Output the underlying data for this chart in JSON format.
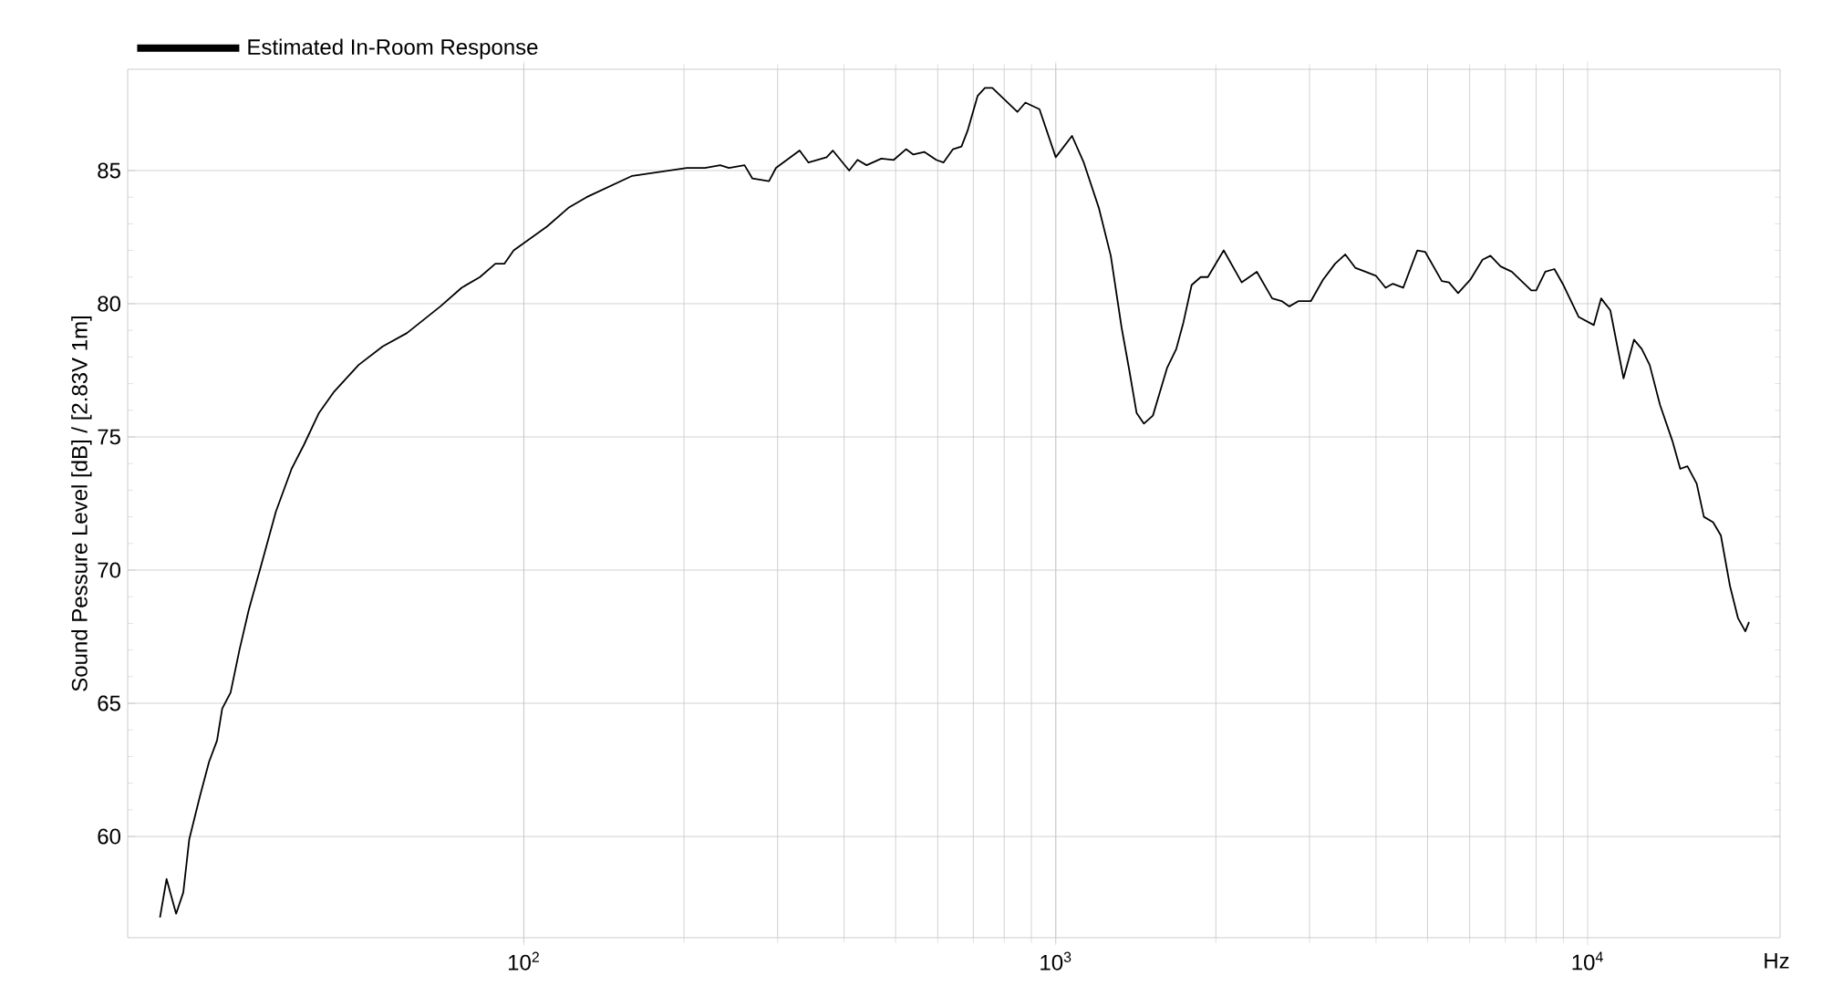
{
  "chart_data": {
    "type": "line",
    "xlabel": "Hz",
    "ylabel": "Sound Pessure Level [dB]  / [2.83V 1m]",
    "log": "x",
    "grid": true,
    "legend": "top left",
    "marker": "none",
    "line_style": "solid",
    "xlim": [
      18,
      23000
    ],
    "ylim": [
      56.2,
      88.8
    ],
    "xticks": [
      {
        "value": 100,
        "label": "10$^{2}$"
      },
      {
        "value": 1000,
        "label": "10$^{3}$"
      },
      {
        "value": 10000,
        "label": "10$^{4}$"
      }
    ],
    "yticks": [
      60,
      65,
      70,
      75,
      80,
      85
    ],
    "series": [
      {
        "name": "Estimated In-Room Response",
        "color": "#000000",
        "x": [
          20.7,
          21.3,
          22.2,
          22.9,
          23.5,
          24.6,
          25.6,
          26.5,
          27.1,
          28.1,
          29.2,
          30.4,
          32.1,
          34.2,
          36.6,
          38.6,
          41.2,
          44.0,
          48.9,
          54.3,
          60.3,
          69.7,
          76.4,
          82.7,
          88.4,
          91.9,
          95.7,
          110.6,
          121.3,
          131.2,
          159.9,
          202.5,
          219,
          234,
          243,
          260,
          269,
          289,
          298,
          330,
          343,
          371,
          381,
          409,
          424,
          441,
          470,
          496,
          523,
          540,
          566,
          596,
          615,
          641,
          665,
          683,
          713,
          736,
          760,
          847,
          877,
          932,
          1000,
          1073,
          1129,
          1205,
          1269,
          1330,
          1375,
          1419,
          1465,
          1523,
          1620,
          1685,
          1738,
          1801,
          1873,
          1932,
          2069,
          2237,
          2388,
          2552,
          2659,
          2749,
          2862,
          3019,
          3180,
          3351,
          3503,
          3657,
          3822,
          3999,
          4170,
          4303,
          4500,
          4783,
          4948,
          5318,
          5487,
          5707,
          6016,
          6343,
          6565,
          6862,
          7201,
          7835,
          8003,
          8324,
          8659,
          9004,
          9621,
          10270,
          10600,
          11030,
          11680,
          12220,
          12640,
          13080,
          13680,
          14430,
          14930,
          15400,
          16030,
          16540,
          17210,
          17800,
          18520,
          19170,
          19790,
          20110
        ],
        "values": [
          56.96,
          58.4,
          57.1,
          57.9,
          59.9,
          61.5,
          62.8,
          63.6,
          64.8,
          65.4,
          67.0,
          68.5,
          70.2,
          72.2,
          73.8,
          74.7,
          75.9,
          76.7,
          77.7,
          78.4,
          78.9,
          79.9,
          80.6,
          81.0,
          81.5,
          81.5,
          82.0,
          82.9,
          83.6,
          84.0,
          84.8,
          85.1,
          85.1,
          85.2,
          85.1,
          85.2,
          84.7,
          84.6,
          85.1,
          85.75,
          85.3,
          85.5,
          85.75,
          85.0,
          85.4,
          85.2,
          85.45,
          85.4,
          85.8,
          85.6,
          85.7,
          85.4,
          85.3,
          85.8,
          85.9,
          86.5,
          87.8,
          88.1,
          88.1,
          87.2,
          87.55,
          87.3,
          85.5,
          86.3,
          85.3,
          83.6,
          81.8,
          79.1,
          77.5,
          75.9,
          75.5,
          75.8,
          77.6,
          78.3,
          79.3,
          80.7,
          81.0,
          81.0,
          82.0,
          80.8,
          81.2,
          80.2,
          80.1,
          79.9,
          80.1,
          80.1,
          80.9,
          81.5,
          81.85,
          81.35,
          81.2,
          81.05,
          80.6,
          80.75,
          80.6,
          82.0,
          81.95,
          80.85,
          80.8,
          80.4,
          80.9,
          81.65,
          81.8,
          81.4,
          81.2,
          80.5,
          80.5,
          81.2,
          81.3,
          80.7,
          79.5,
          79.2,
          80.2,
          79.75,
          77.2,
          78.65,
          78.3,
          77.7,
          76.2,
          74.85,
          73.8,
          73.9,
          73.25,
          72.0,
          71.8,
          71.3,
          69.4,
          68.2,
          67.7,
          68.05
        ]
      }
    ]
  }
}
